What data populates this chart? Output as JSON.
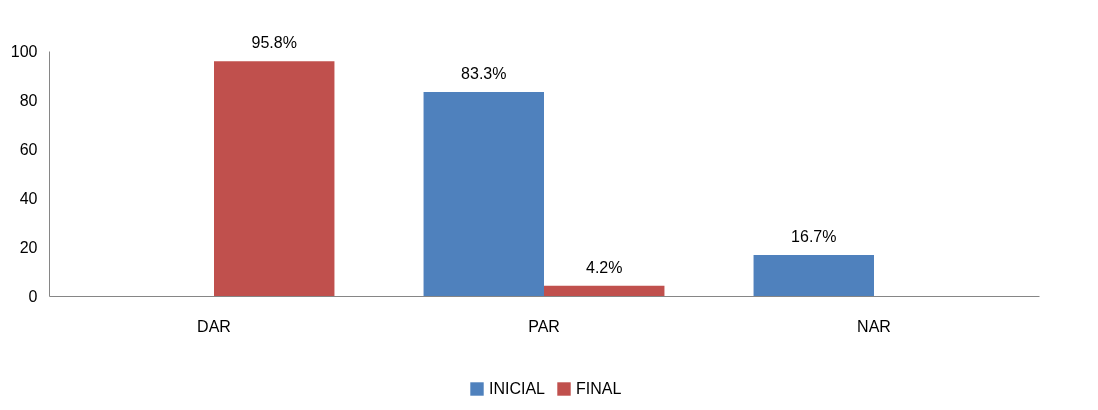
{
  "chart_data": {
    "type": "bar",
    "categories": [
      "DAR",
      "PAR",
      "NAR"
    ],
    "series": [
      {
        "name": "INICIAL",
        "color": "#4f81bd",
        "values": [
          null,
          83.3,
          16.7
        ],
        "value_labels": [
          null,
          "83.3%",
          "16.7%"
        ]
      },
      {
        "name": "FINAL",
        "color": "#c0504d",
        "values": [
          95.8,
          4.2,
          null
        ],
        "value_labels": [
          "95.8%",
          "4.2%",
          null
        ]
      }
    ],
    "ylim": [
      0,
      100
    ],
    "yticks": [
      0,
      20,
      40,
      60,
      80,
      100
    ],
    "grid": false,
    "legend": "bottom"
  }
}
